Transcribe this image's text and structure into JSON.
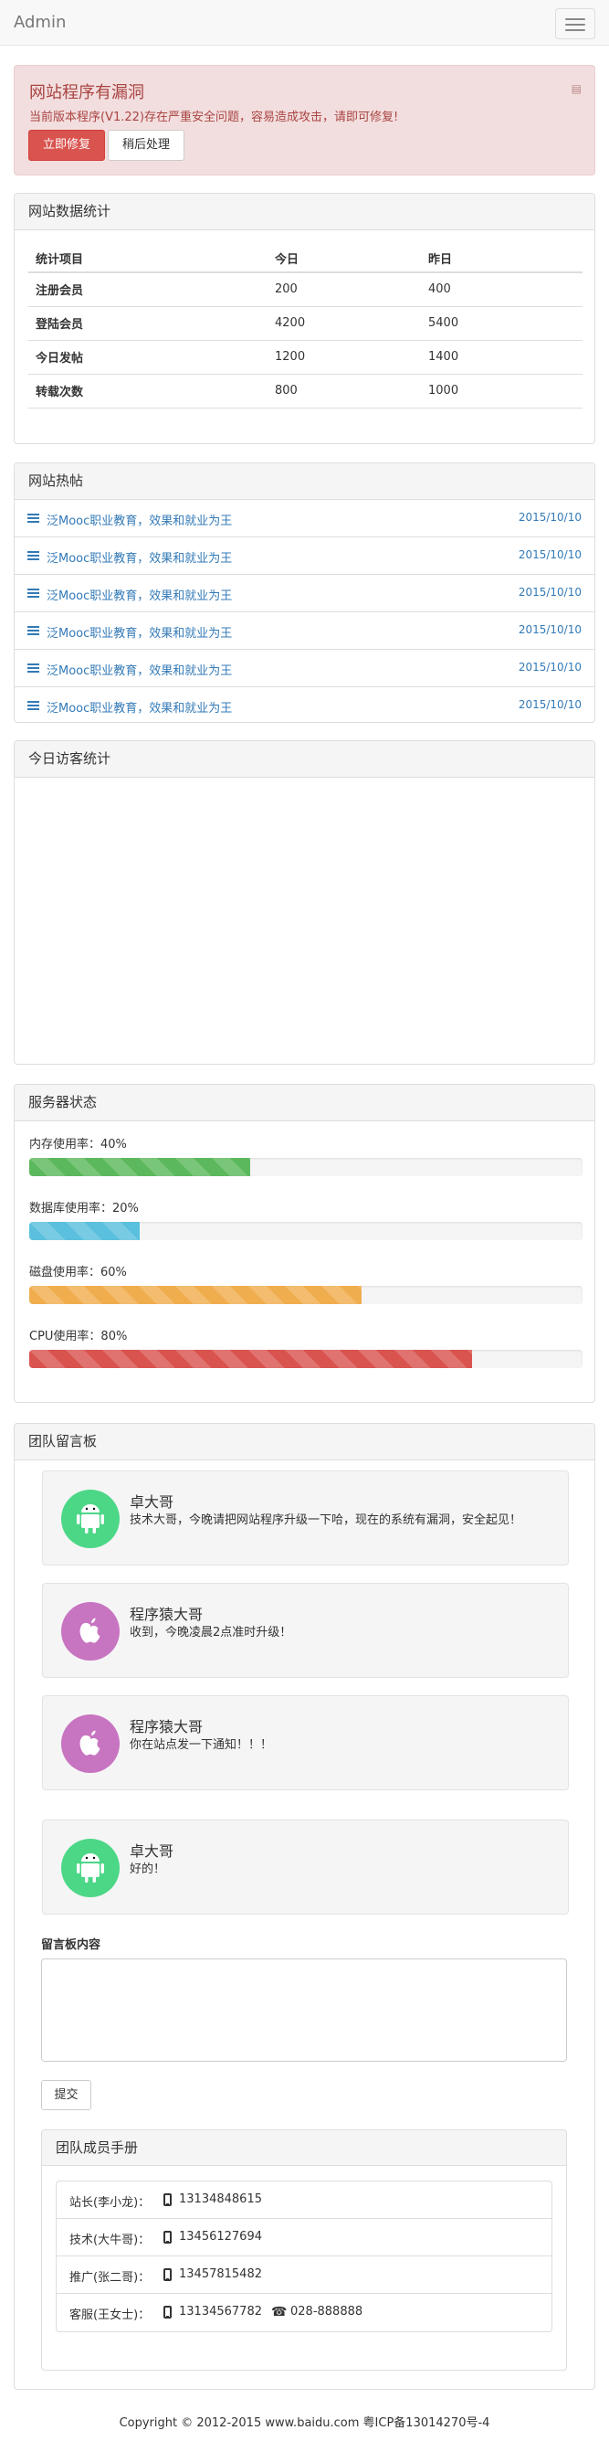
{
  "navbar": {
    "brand": "Admin"
  },
  "alert": {
    "title": "网站程序有漏洞",
    "text": "当前版本程序(V1.22)存在严重安全问题，容易造成攻击，请即可修复!",
    "close_icon": "close-icon",
    "fix_label": "立即修复",
    "later_label": "稍后处理"
  },
  "stats": {
    "title": "网站数据统计",
    "headers": [
      "统计项目",
      "今日",
      "昨日"
    ],
    "rows": [
      [
        "注册会员",
        "200",
        "400"
      ],
      [
        "登陆会员",
        "4200",
        "5400"
      ],
      [
        "今日发帖",
        "1200",
        "1400"
      ],
      [
        "转载次数",
        "800",
        "1000"
      ]
    ]
  },
  "hot": {
    "title": "网站热帖",
    "items": [
      {
        "text": "泛Mooc职业教育，效果和就业为王",
        "date": "2015/10/10"
      },
      {
        "text": "泛Mooc职业教育，效果和就业为王",
        "date": "2015/10/10"
      },
      {
        "text": "泛Mooc职业教育，效果和就业为王",
        "date": "2015/10/10"
      },
      {
        "text": "泛Mooc职业教育，效果和就业为王",
        "date": "2015/10/10"
      },
      {
        "text": "泛Mooc职业教育，效果和就业为王",
        "date": "2015/10/10"
      },
      {
        "text": "泛Mooc职业教育，效果和就业为王",
        "date": "2015/10/10"
      }
    ]
  },
  "visit": {
    "title": "今日访客统计"
  },
  "server": {
    "title": "服务器状态",
    "meters": [
      {
        "label": "内存使用率：40%",
        "value": 40,
        "color": "#5cb85c"
      },
      {
        "label": "数据库使用率：20%",
        "value": 20,
        "color": "#5bc0de"
      },
      {
        "label": "磁盘使用率：60%",
        "value": 60,
        "color": "#f0ad4e"
      },
      {
        "label": "CPU使用率：80%",
        "value": 80,
        "color": "#d9534f"
      }
    ]
  },
  "messages": {
    "title": "团队留言板",
    "items": [
      {
        "name": "卓大哥",
        "text": "技术大哥，今晚请把网站程序升级一下哈，现在的系统有漏洞，安全起见！",
        "icon": "android-icon",
        "color": "#4cd787"
      },
      {
        "name": "程序猿大哥",
        "text": "收到，今晚凌晨2点准时升级！",
        "icon": "apple-icon",
        "color": "#c774c1"
      },
      {
        "name": "程序猿大哥",
        "text": "你在站点发一下通知！！！",
        "icon": "apple-icon",
        "color": "#c774c1"
      },
      {
        "name": "卓大哥",
        "text": "好的！",
        "icon": "android-icon",
        "color": "#4cd787"
      }
    ],
    "form_label": "留言板内容",
    "textarea_value": "",
    "submit_label": "提交"
  },
  "team": {
    "title": "团队成员手册",
    "members": [
      {
        "role": "站长(李小龙)：",
        "phone": "13134848615",
        "tel": ""
      },
      {
        "role": "技术(大牛哥)：",
        "phone": "13456127694",
        "tel": ""
      },
      {
        "role": "推广(张二哥)：",
        "phone": "13457815482",
        "tel": ""
      },
      {
        "role": "客服(王女士)：",
        "phone": "13134567782",
        "tel": "028-888888"
      }
    ]
  },
  "footer": {
    "text": "Copyright © 2012-2015  www.baidu.com  粤ICP备13014270号-4"
  }
}
